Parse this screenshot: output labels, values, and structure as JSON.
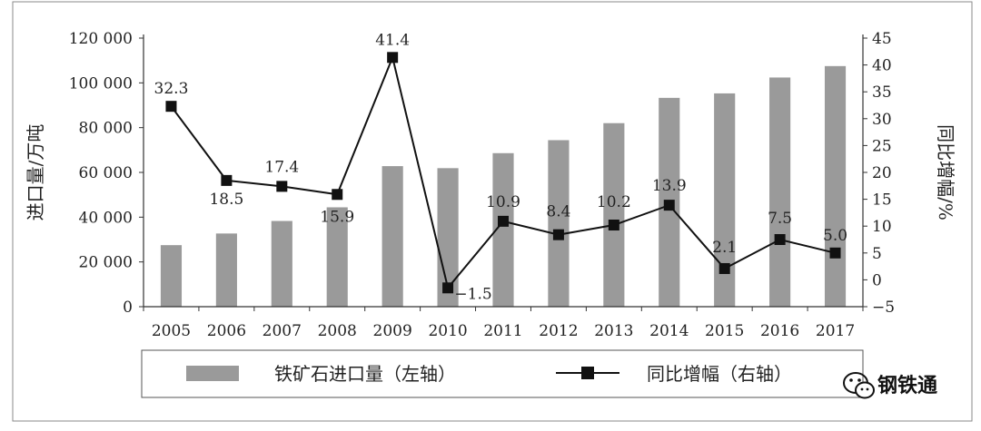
{
  "chart_data": {
    "type": "bar",
    "categories": [
      "2005",
      "2006",
      "2007",
      "2008",
      "2009",
      "2010",
      "2011",
      "2012",
      "2013",
      "2014",
      "2015",
      "2016",
      "2017"
    ],
    "series": [
      {
        "name": "铁矿石进口量（左轴）",
        "type": "bar",
        "axis": "left",
        "values": [
          27500,
          32700,
          38300,
          44400,
          62800,
          61900,
          68600,
          74400,
          82000,
          93300,
          95300,
          102400,
          107500
        ]
      },
      {
        "name": "同比增幅（右轴）",
        "type": "line",
        "axis": "right",
        "values": [
          32.3,
          18.5,
          17.4,
          15.9,
          41.4,
          -1.5,
          10.9,
          8.4,
          10.2,
          13.9,
          2.1,
          7.5,
          5.0
        ],
        "labels": [
          "32.3",
          "18.5",
          "17.4",
          "15.9",
          "41.4",
          "−1.5",
          "10.9",
          "8.4",
          "10.2",
          "13.9",
          "2.1",
          "7.5",
          "5.0"
        ]
      }
    ],
    "ylabel_left": "进口量/万吨",
    "ylabel_right": "同比增幅/%",
    "ylim_left": [
      0,
      120000
    ],
    "ylim_right": [
      -5,
      45
    ],
    "yticks_left": [
      "0",
      "20 000",
      "40 000",
      "60 000",
      "80 000",
      "100 000",
      "120 000"
    ],
    "yticks_right": [
      "−5",
      "0",
      "5",
      "10",
      "15",
      "20",
      "25",
      "30",
      "35",
      "40",
      "45"
    ],
    "grid": false,
    "legend_position": "bottom"
  },
  "colors": {
    "bar": "#9a9a9a",
    "line": "#111111",
    "axis": "#333333"
  },
  "watermark": {
    "icon": "wechat-icon",
    "text": "钢铁通"
  }
}
